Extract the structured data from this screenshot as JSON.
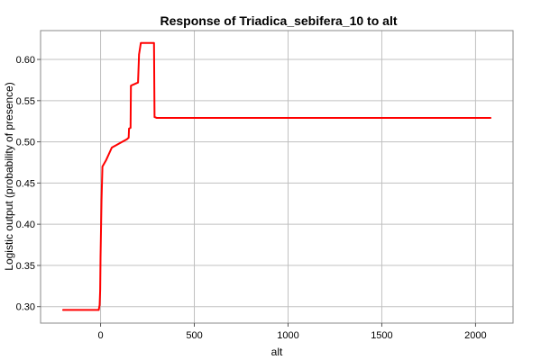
{
  "chart_data": {
    "type": "line",
    "title": "Response of Triadica_sebifera_10 to alt",
    "xlabel": "alt",
    "ylabel": "Logistic output (probability of presence)",
    "xlim": [
      -320,
      2200
    ],
    "ylim": [
      0.28,
      0.635
    ],
    "x_ticks": [
      0,
      500,
      1000,
      1500,
      2000
    ],
    "y_ticks": [
      0.3,
      0.35,
      0.4,
      0.45,
      0.5,
      0.55,
      0.6
    ],
    "y_tick_labels": [
      "0.30",
      "0.35",
      "0.40",
      "0.45",
      "0.50",
      "0.55",
      "0.60"
    ],
    "grid": true,
    "legend": "none",
    "series": [
      {
        "color": "#ff0000",
        "x": [
          -200,
          -10,
          -5,
          -2,
          0,
          5,
          10,
          30,
          60,
          100,
          140,
          150,
          152,
          160,
          162,
          170,
          200,
          205,
          215,
          270,
          285,
          288,
          300,
          2080
        ],
        "y": [
          0.296,
          0.296,
          0.302,
          0.32,
          0.36,
          0.43,
          0.47,
          0.478,
          0.493,
          0.498,
          0.503,
          0.505,
          0.516,
          0.517,
          0.568,
          0.569,
          0.572,
          0.606,
          0.62,
          0.62,
          0.62,
          0.53,
          0.529,
          0.529
        ]
      }
    ]
  }
}
